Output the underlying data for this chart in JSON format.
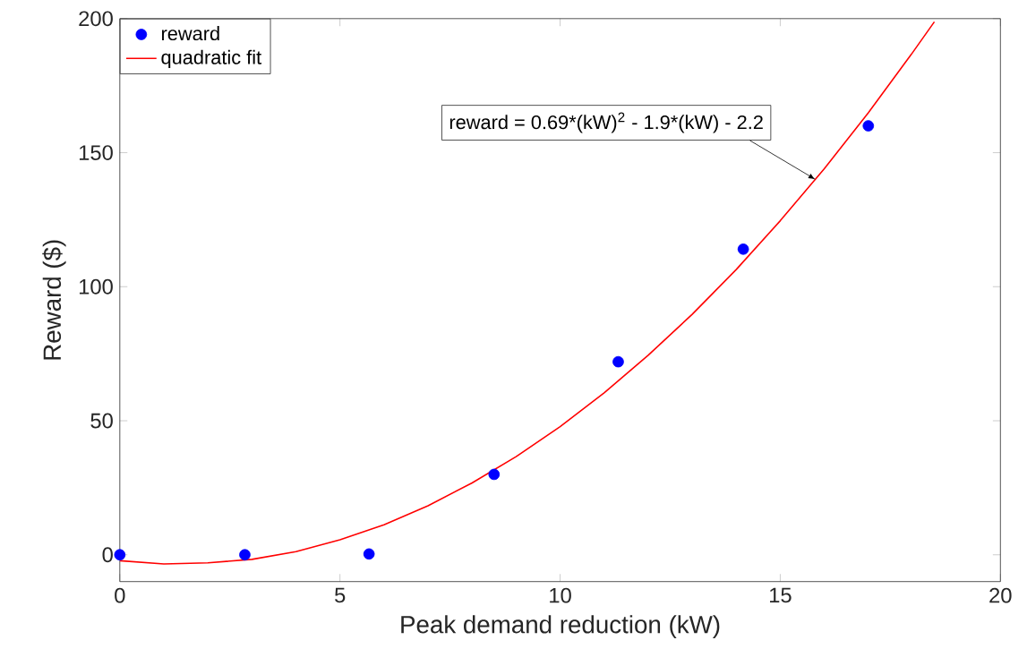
{
  "chart_data": {
    "type": "scatter",
    "xlabel": "Peak demand reduction (kW)",
    "ylabel": "Reward ($)",
    "xlim": [
      0,
      20
    ],
    "ylim": [
      -10,
      200
    ],
    "xticks": [
      0,
      5,
      10,
      15,
      20
    ],
    "yticks": [
      0,
      50,
      100,
      150,
      200
    ],
    "legend": "top left",
    "series": [
      {
        "name": "reward",
        "marker": "circle",
        "color": "#0000ff",
        "x": [
          0,
          2.84,
          5.66,
          8.5,
          11.32,
          14.16,
          17.0
        ],
        "values": [
          0,
          0,
          0.3,
          30,
          72,
          114,
          160
        ]
      },
      {
        "name": "quadratic fit",
        "type": "line",
        "marker": "none",
        "line_style": "solid",
        "color": "#ff0000",
        "x": [
          0,
          1,
          2,
          3,
          4,
          5,
          6,
          7,
          8,
          9,
          10,
          11,
          12,
          13,
          14,
          15,
          16,
          17,
          18,
          18.5
        ],
        "values": [
          -2.2,
          -3.4,
          -3.0,
          -1.7,
          1.2,
          5.6,
          11.2,
          18.3,
          26.8,
          36.6,
          47.8,
          60.4,
          74.4,
          89.7,
          106.4,
          124.6,
          144.0,
          164.9,
          187.2,
          198.8
        ]
      }
    ],
    "annotations": [
      {
        "text": "reward = 0.69*(kW)$^{2}$ - 1.9*(kW) - 2.2",
        "x": 15.8,
        "y": 140
      }
    ]
  }
}
